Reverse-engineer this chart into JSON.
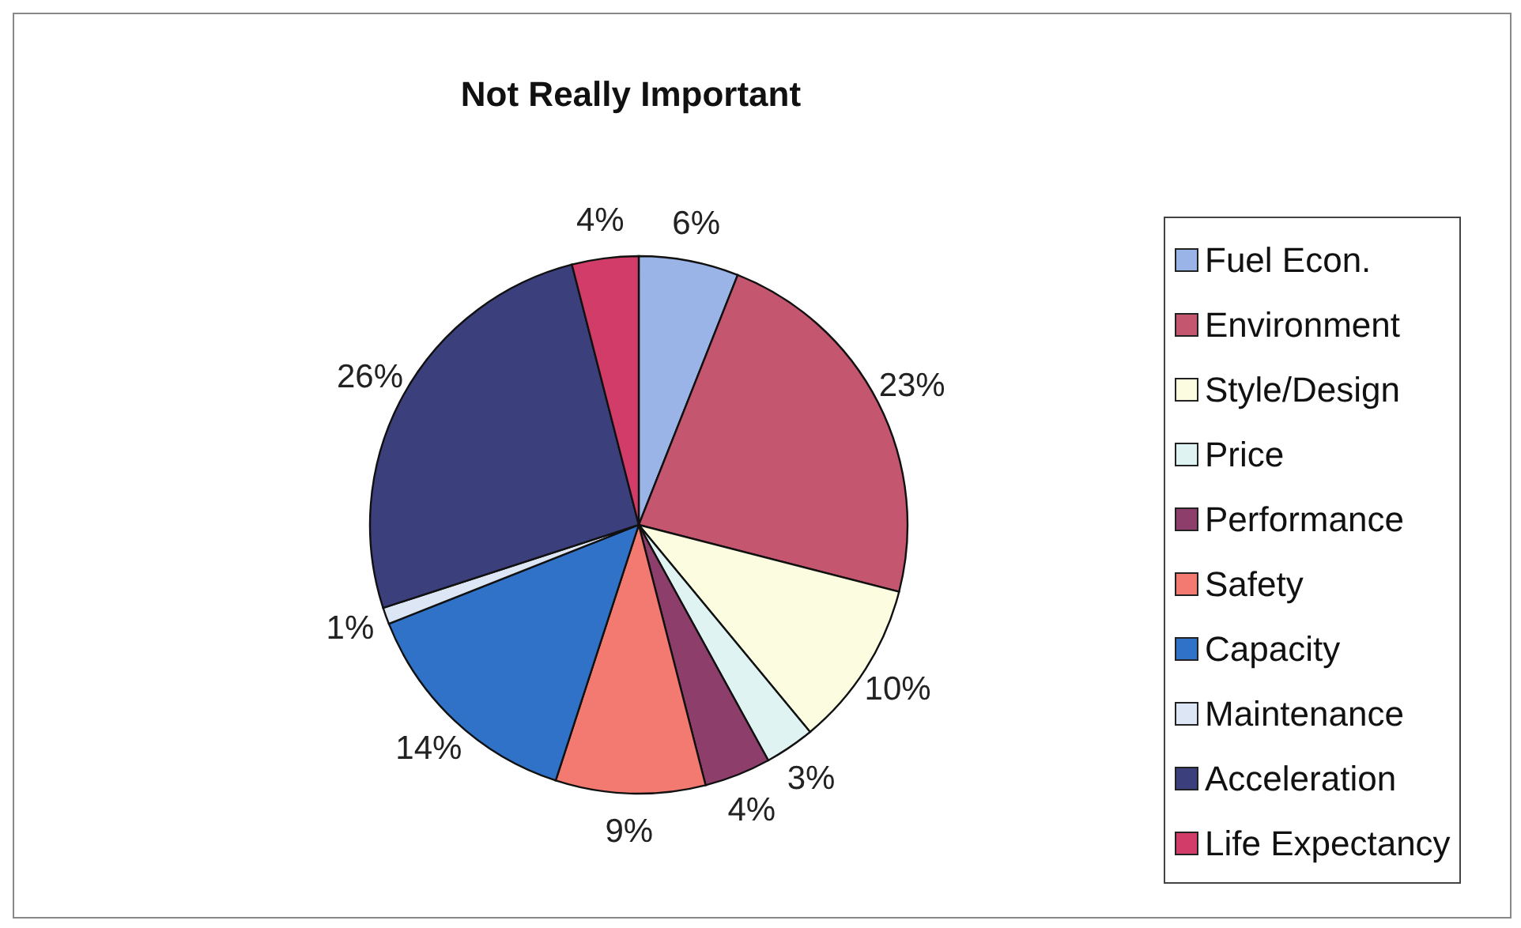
{
  "chart_data": {
    "type": "pie",
    "title": "Not Really Important",
    "categories": [
      "Fuel Econ.",
      "Environment",
      "Style/Design",
      "Price",
      "Performance",
      "Safety",
      "Capacity",
      "Maintenance",
      "Acceleration",
      "Life Expectancy"
    ],
    "values": [
      6,
      23,
      10,
      3,
      4,
      9,
      14,
      1,
      26,
      4
    ],
    "value_labels": [
      "6%",
      "23%",
      "10%",
      "3%",
      "4%",
      "9%",
      "14%",
      "1%",
      "26%",
      "4%"
    ],
    "colors": [
      "#9bb4e8",
      "#c4566f",
      "#fcfce0",
      "#dff4f2",
      "#8e3e6a",
      "#f27a70",
      "#2f72c8",
      "#dde6f5",
      "#3b3f7c",
      "#d23c68"
    ],
    "legend": "right"
  }
}
